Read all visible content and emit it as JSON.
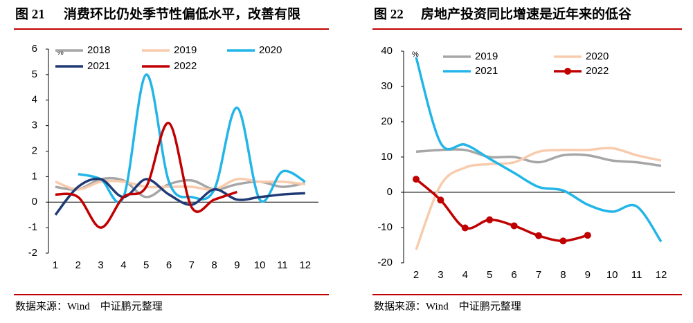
{
  "chart_data": [
    {
      "type": "line",
      "figure_label": "图 21",
      "title": "消费环比仍处季节性偏低水平，改善有限",
      "source": "数据来源：Wind　中证鹏元整理",
      "y_unit": "%",
      "categories": [
        "1",
        "2",
        "3",
        "4",
        "5",
        "6",
        "7",
        "8",
        "9",
        "10",
        "11",
        "12"
      ],
      "ylim": [
        -2,
        6
      ],
      "yticks": [
        -2,
        -1,
        0,
        1,
        2,
        3,
        4,
        5,
        6
      ],
      "series": [
        {
          "name": "2018",
          "color": "#a6a6a6",
          "values": [
            0.6,
            0.5,
            0.9,
            0.85,
            0.2,
            0.7,
            0.85,
            0.5,
            0.7,
            0.8,
            0.6,
            0.75
          ]
        },
        {
          "name": "2019",
          "color": "#f8cbad",
          "values": [
            0.8,
            0.5,
            0.8,
            0.8,
            0.6,
            0.6,
            0.6,
            0.5,
            0.9,
            0.8,
            0.8,
            0.7
          ]
        },
        {
          "name": "2020",
          "color": "#22b5e8",
          "values": [
            null,
            1.1,
            0.9,
            0.2,
            5.0,
            0.8,
            0.2,
            0.5,
            3.7,
            0.1,
            1.2,
            0.8
          ]
        },
        {
          "name": "2021",
          "color": "#1f3a75",
          "values": [
            -0.5,
            0.6,
            0.9,
            0.2,
            0.9,
            0.3,
            -0.1,
            0.5,
            0.1,
            0.2,
            0.3,
            0.35
          ]
        },
        {
          "name": "2022",
          "color": "#c00000",
          "values": [
            0.3,
            0.2,
            -1.0,
            0.2,
            0.6,
            3.1,
            -0.2,
            0.1,
            0.4,
            null,
            null,
            null
          ]
        }
      ]
    },
    {
      "type": "line",
      "figure_label": "图 22",
      "title": "房地产投资同比增速是近年来的低谷",
      "source": "数据来源：Wind　中证鹏元整理",
      "y_unit": "%",
      "categories": [
        "2",
        "3",
        "4",
        "5",
        "6",
        "7",
        "8",
        "9",
        "10",
        "11",
        "12"
      ],
      "ylim": [
        -20,
        40
      ],
      "yticks": [
        -20,
        -10,
        0,
        10,
        20,
        30,
        40
      ],
      "series": [
        {
          "name": "2019",
          "color": "#a6a6a6",
          "values": [
            11.5,
            12,
            12,
            10,
            10,
            8.5,
            10.5,
            10.5,
            9,
            8.5,
            7.5
          ]
        },
        {
          "name": "2020",
          "color": "#f8cbad",
          "values": [
            -16.3,
            2,
            7,
            8,
            8.5,
            11.5,
            12,
            12,
            12.5,
            10.5,
            9
          ]
        },
        {
          "name": "2021",
          "color": "#22b5e8",
          "values": [
            38.3,
            14,
            13.5,
            9.5,
            5.5,
            1.5,
            0.5,
            -3.5,
            -5.5,
            -4,
            -14
          ]
        },
        {
          "name": "2022",
          "color": "#c00000",
          "marker": true,
          "values": [
            3.7,
            -2.2,
            -10.1,
            -7.8,
            -9.5,
            -12.3,
            -13.8,
            -12.2,
            null,
            null,
            null
          ]
        }
      ]
    }
  ]
}
